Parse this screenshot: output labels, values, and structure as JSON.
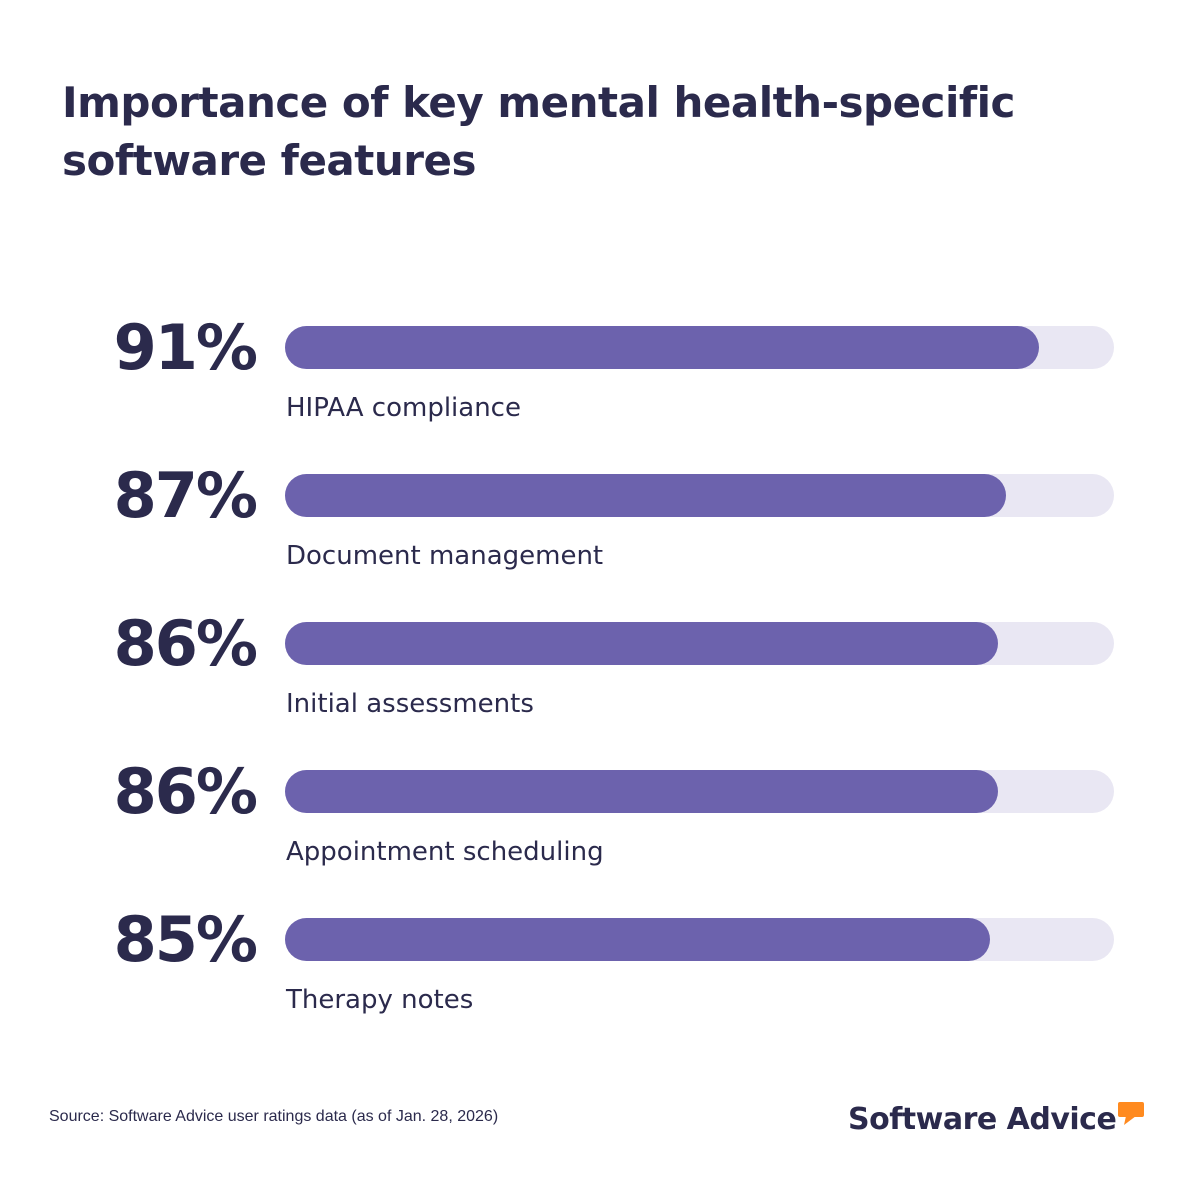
{
  "chart_data": {
    "type": "bar",
    "orientation": "horizontal",
    "title": "Importance of key mental health-specific software features",
    "categories": [
      "HIPAA compliance",
      "Document management",
      "Initial assessments",
      "Appointment scheduling",
      "Therapy notes"
    ],
    "values": [
      91,
      87,
      86,
      86,
      85
    ],
    "value_labels": [
      "91%",
      "87%",
      "86%",
      "86%",
      "85%"
    ],
    "xlim": [
      0,
      100
    ],
    "grid": false,
    "legend": "none",
    "colors": {
      "bar": "#6c62ad",
      "track": "#e9e7f3",
      "text": "#2b2a4c"
    }
  },
  "footer": {
    "source": "Source: Software Advice user ratings data (as of Jan. 28, 2026)"
  },
  "brand": {
    "name": "Software Advice",
    "icon": "speech-bubble-icon",
    "accent": "#ff8a1f"
  }
}
